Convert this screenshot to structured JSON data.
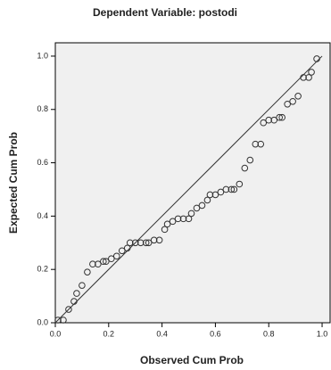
{
  "chart_data": {
    "type": "scatter",
    "title": "Dependent Variable: postodi",
    "xlabel": "Observed Cum Prob",
    "ylabel": "Expected Cum Prob",
    "x": [
      0.01,
      0.03,
      0.05,
      0.07,
      0.08,
      0.1,
      0.12,
      0.14,
      0.16,
      0.18,
      0.19,
      0.21,
      0.23,
      0.25,
      0.27,
      0.28,
      0.3,
      0.32,
      0.34,
      0.35,
      0.37,
      0.39,
      0.41,
      0.42,
      0.44,
      0.46,
      0.48,
      0.5,
      0.51,
      0.53,
      0.55,
      0.57,
      0.58,
      0.6,
      0.62,
      0.64,
      0.66,
      0.67,
      0.69,
      0.71,
      0.73,
      0.75,
      0.77,
      0.78,
      0.8,
      0.82,
      0.84,
      0.85,
      0.87,
      0.89,
      0.91,
      0.93,
      0.95,
      0.96,
      0.98
    ],
    "y": [
      0.01,
      0.01,
      0.05,
      0.08,
      0.11,
      0.14,
      0.19,
      0.22,
      0.22,
      0.23,
      0.23,
      0.24,
      0.25,
      0.27,
      0.28,
      0.3,
      0.3,
      0.3,
      0.3,
      0.3,
      0.31,
      0.31,
      0.35,
      0.37,
      0.38,
      0.39,
      0.39,
      0.39,
      0.41,
      0.43,
      0.44,
      0.46,
      0.48,
      0.48,
      0.49,
      0.5,
      0.5,
      0.5,
      0.52,
      0.58,
      0.61,
      0.67,
      0.67,
      0.75,
      0.76,
      0.76,
      0.77,
      0.77,
      0.82,
      0.83,
      0.85,
      0.92,
      0.92,
      0.94,
      0.99
    ],
    "reference_line": {
      "x": [
        0,
        1
      ],
      "y": [
        0,
        1
      ]
    },
    "xlim": [
      0,
      1.03
    ],
    "ylim": [
      0,
      1.05
    ],
    "xticks": [
      {
        "value": 0,
        "label": "0.0"
      },
      0.2,
      0.4,
      0.6,
      0.8,
      {
        "value": 1,
        "label": "1.0"
      }
    ],
    "yticks": [
      {
        "value": 0,
        "label": "0.0"
      },
      0.2,
      0.4,
      0.6,
      0.8,
      {
        "value": 1,
        "label": "1.0"
      }
    ],
    "marker_color": "#333333",
    "background": "#f0f0f0"
  }
}
